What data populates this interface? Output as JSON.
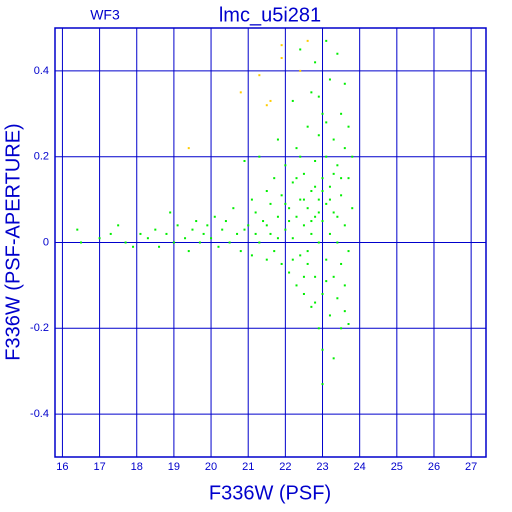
{
  "chart_data": {
    "type": "scatter",
    "title": "lmc_u5i281",
    "annotation": "WF3",
    "x_label": "F336W (PSF)",
    "y_label": "F336W (PSF-APERTURE)",
    "xlim": [
      15.8,
      27.4
    ],
    "ylim": [
      -0.5,
      0.5
    ],
    "xticks": [
      16,
      17,
      18,
      19,
      20,
      21,
      22,
      23,
      24,
      25,
      26,
      27
    ],
    "yticks": [
      -0.4,
      -0.2,
      0,
      0.2,
      0.4
    ],
    "grid": true,
    "axis_color": "#0000cc",
    "series": [
      {
        "color": "#00ee00",
        "x": [
          16.4,
          16.5,
          17.0,
          17.3,
          17.5,
          17.7,
          17.9,
          18.1,
          18.3,
          18.5,
          18.6,
          18.8,
          18.9,
          19.0,
          19.1,
          19.3,
          19.4,
          19.5,
          19.6,
          19.7,
          19.8,
          19.9,
          20.0,
          20.1,
          20.2,
          20.3,
          20.4,
          20.5,
          20.6,
          20.7,
          20.8,
          20.9,
          21.0,
          21.1,
          21.1,
          21.2,
          21.3,
          21.3,
          21.4,
          21.5,
          21.5,
          21.6,
          21.6,
          21.7,
          21.7,
          21.8,
          21.8,
          21.9,
          21.9,
          22.0,
          22.0,
          22.1,
          22.1,
          22.2,
          22.2,
          22.2,
          22.3,
          22.3,
          22.3,
          22.4,
          22.4,
          22.4,
          22.5,
          22.5,
          22.5,
          22.6,
          22.6,
          22.6,
          22.7,
          22.7,
          22.7,
          22.7,
          22.8,
          22.8,
          22.8,
          22.8,
          22.9,
          22.9,
          22.9,
          22.9,
          23.0,
          23.0,
          23.0,
          23.0,
          23.0,
          23.1,
          23.1,
          23.1,
          23.1,
          23.2,
          23.2,
          23.2,
          23.2,
          23.3,
          23.3,
          23.3,
          23.3,
          23.4,
          23.4,
          23.4,
          23.4,
          23.5,
          23.5,
          23.5,
          23.5,
          23.6,
          23.6,
          23.6,
          23.6,
          23.7,
          23.7,
          23.7,
          23.7,
          23.8,
          23.8,
          22.1,
          22.5,
          22.9,
          23.2,
          22.0,
          21.8,
          22.6,
          23.0,
          22.4,
          22.8,
          23.4,
          23.1,
          22.3,
          22.7,
          23.3,
          22.2,
          21.5,
          21.2,
          20.9,
          22.9,
          23.5,
          23.1,
          22.5,
          23.6,
          23.0,
          22.8
        ],
        "y": [
          0.03,
          0.0,
          0.01,
          0.02,
          0.04,
          0.0,
          -0.01,
          0.02,
          0.01,
          0.03,
          -0.01,
          0.02,
          0.07,
          0.0,
          0.04,
          0.01,
          -0.02,
          0.03,
          0.05,
          0.0,
          0.02,
          0.04,
          0.01,
          0.06,
          -0.01,
          0.03,
          0.05,
          0.0,
          0.08,
          0.02,
          -0.02,
          0.19,
          0.04,
          0.1,
          -0.03,
          0.07,
          0.0,
          0.2,
          0.05,
          0.12,
          -0.04,
          0.09,
          0.02,
          0.15,
          -0.02,
          0.06,
          0.24,
          0.11,
          -0.05,
          0.03,
          0.18,
          0.08,
          -0.07,
          0.14,
          0.01,
          0.33,
          0.06,
          -0.1,
          0.22,
          0.1,
          -0.03,
          0.45,
          0.16,
          0.04,
          -0.12,
          0.27,
          0.08,
          -0.05,
          0.12,
          0.35,
          -0.15,
          0.02,
          0.19,
          -0.08,
          0.06,
          0.42,
          0.1,
          -0.2,
          0.25,
          0.0,
          0.15,
          -0.12,
          0.3,
          0.05,
          -0.25,
          0.2,
          -0.04,
          0.47,
          0.09,
          0.13,
          -0.17,
          0.38,
          0.02,
          0.24,
          -0.08,
          0.07,
          -0.27,
          0.18,
          0.0,
          0.44,
          -0.13,
          0.11,
          0.3,
          -0.05,
          -0.2,
          0.22,
          0.04,
          0.37,
          -0.1,
          0.15,
          -0.02,
          0.27,
          -0.19,
          0.08,
          0.2,
          0.05,
          0.1,
          0.07,
          0.1,
          0.09,
          0.01,
          -0.02,
          0.12,
          0.2,
          0.13,
          0.06,
          -0.09,
          0.15,
          0.05,
          0.16,
          -0.04,
          0.04,
          0.02,
          0.03,
          0.34,
          0.15,
          0.28,
          -0.08,
          -0.16,
          -0.33,
          -0.14
        ]
      },
      {
        "color": "#ffcc00",
        "x": [
          19.4,
          20.8,
          21.5,
          21.6,
          21.3,
          21.9,
          21.9,
          22.6,
          22.4
        ],
        "y": [
          0.22,
          0.35,
          0.32,
          0.33,
          0.39,
          0.43,
          0.46,
          0.47,
          0.4
        ]
      }
    ]
  }
}
